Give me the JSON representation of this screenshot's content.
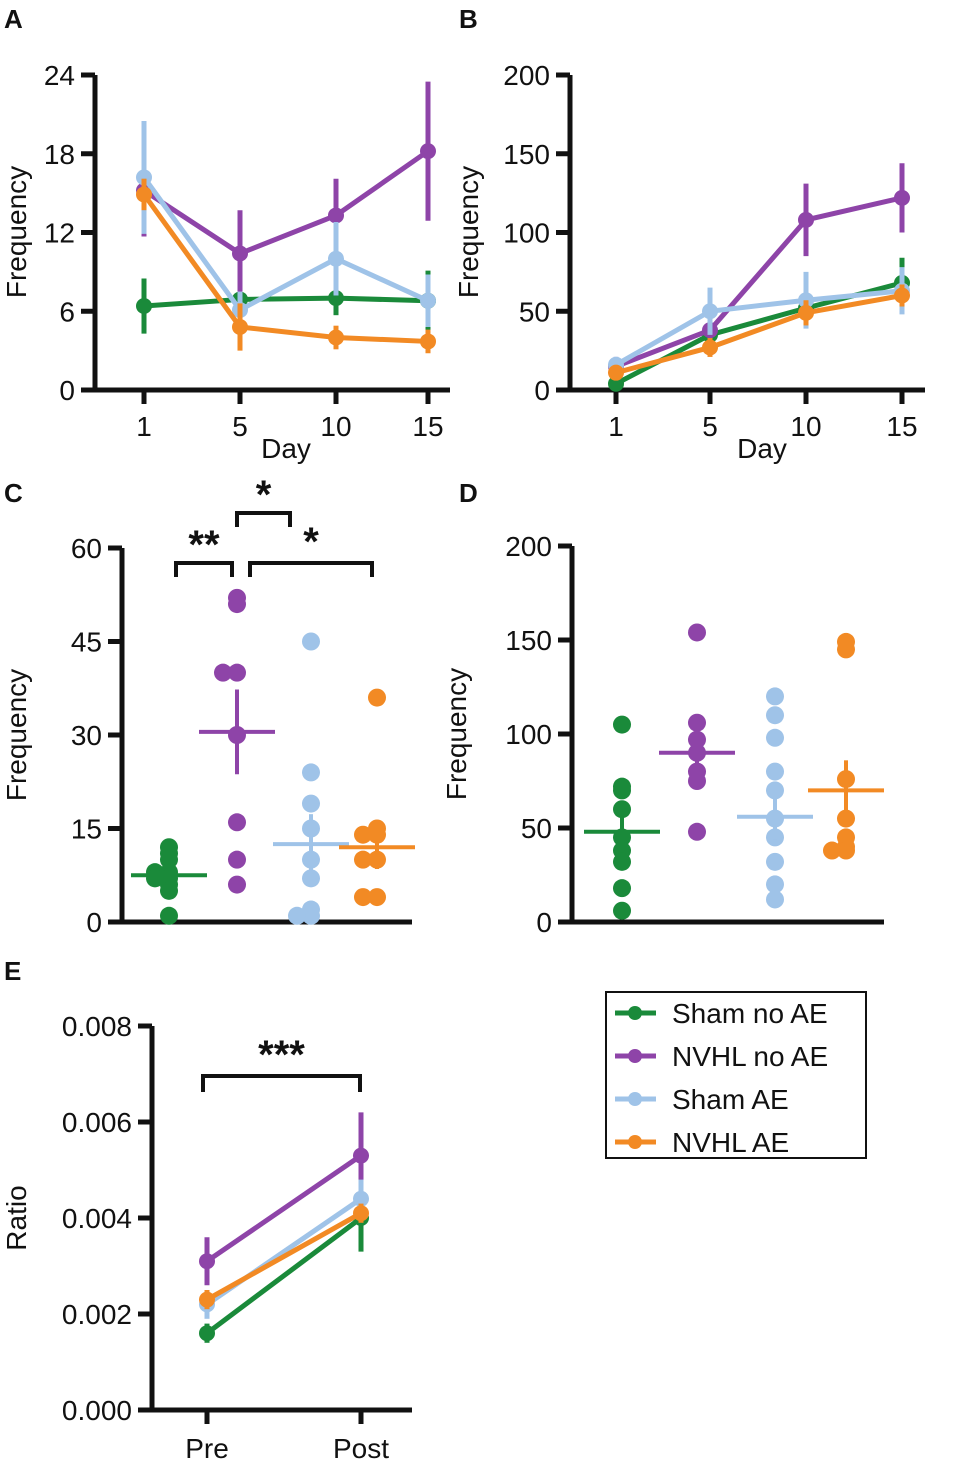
{
  "colors": {
    "Sham no AE": "#1a8a3a",
    "NVHL no AE": "#8e44a8",
    "Sham AE": "#9fc3e8",
    "NVHL AE": "#f28a24"
  },
  "legend": [
    "Sham no AE",
    "NVHL no AE",
    "Sham AE",
    "NVHL AE"
  ],
  "chart_data": [
    {
      "panel": "A",
      "type": "line",
      "xlabel": "Day",
      "ylabel": "Frequency",
      "categories": [
        "1",
        "5",
        "10",
        "15"
      ],
      "ylim": [
        0,
        24
      ],
      "yticks": [
        "0",
        "6",
        "12",
        "18",
        "24"
      ],
      "series": [
        {
          "name": "Sham no AE",
          "values": [
            6.4,
            6.9,
            7.0,
            6.8
          ],
          "err": [
            2.1,
            1.6,
            1.3,
            2.3
          ]
        },
        {
          "name": "NVHL no AE",
          "values": [
            15.2,
            10.4,
            13.3,
            18.2
          ],
          "err": [
            3.5,
            3.3,
            2.8,
            5.3
          ]
        },
        {
          "name": "Sham AE",
          "values": [
            16.2,
            6.1,
            10.0,
            6.8
          ],
          "err": [
            4.3,
            1.4,
            2.8,
            2.0
          ]
        },
        {
          "name": "NVHL AE",
          "values": [
            14.9,
            4.8,
            4.0,
            3.7
          ],
          "err": [
            1.2,
            1.8,
            0.9,
            0.9
          ]
        }
      ]
    },
    {
      "panel": "B",
      "type": "line",
      "xlabel": "Day",
      "ylabel": "Frequency",
      "categories": [
        "1",
        "5",
        "10",
        "15"
      ],
      "ylim": [
        0,
        200
      ],
      "yticks": [
        "0",
        "50",
        "100",
        "150",
        "200"
      ],
      "series": [
        {
          "name": "Sham no AE",
          "values": [
            4,
            35,
            52,
            68
          ],
          "err": [
            3,
            6,
            8,
            16
          ]
        },
        {
          "name": "NVHL no AE",
          "values": [
            15,
            38,
            108,
            122
          ],
          "err": [
            6,
            8,
            23,
            22
          ]
        },
        {
          "name": "Sham AE",
          "values": [
            16,
            50,
            57,
            63
          ],
          "err": [
            5,
            15,
            18,
            15
          ]
        },
        {
          "name": "NVHL AE",
          "values": [
            11,
            27,
            49,
            60
          ],
          "err": [
            4,
            6,
            8,
            7
          ]
        }
      ]
    },
    {
      "panel": "C",
      "type": "scatter",
      "ylabel": "Frequency",
      "ylim": [
        0,
        60
      ],
      "yticks": [
        "0",
        "15",
        "30",
        "45",
        "60"
      ],
      "groups": [
        {
          "name": "Sham no AE",
          "mean": 7.5,
          "sem": 1.3,
          "points": [
            12,
            11,
            10,
            8,
            8,
            7,
            7,
            6,
            5,
            1
          ]
        },
        {
          "name": "NVHL no AE",
          "mean": 30.5,
          "sem": 6.8,
          "points": [
            52,
            51,
            40,
            40,
            30,
            16,
            10,
            6
          ]
        },
        {
          "name": "Sham AE",
          "mean": 12.5,
          "sem": 4.8,
          "points": [
            45,
            24,
            19,
            15,
            10,
            7,
            2,
            1,
            1
          ]
        },
        {
          "name": "NVHL AE",
          "mean": 12,
          "sem": 3.5,
          "points": [
            36,
            15,
            14,
            14,
            10,
            10,
            4,
            4
          ]
        }
      ],
      "significance": [
        {
          "label": "**",
          "from": "Sham no AE",
          "to": "NVHL no AE"
        },
        {
          "label": "*",
          "from": "NVHL no AE",
          "to": "Sham AE"
        },
        {
          "label": "*",
          "from": "NVHL no AE",
          "to": "NVHL AE"
        }
      ]
    },
    {
      "panel": "D",
      "type": "scatter",
      "ylabel": "Frequency",
      "ylim": [
        0,
        200
      ],
      "yticks": [
        "0",
        "50",
        "100",
        "150",
        "200"
      ],
      "groups": [
        {
          "name": "Sham no AE",
          "mean": 48,
          "sem": 11,
          "points": [
            105,
            72,
            70,
            60,
            45,
            38,
            32,
            18,
            6
          ]
        },
        {
          "name": "NVHL no AE",
          "mean": 90,
          "sem": 11,
          "points": [
            154,
            106,
            97,
            90,
            80,
            75,
            48
          ]
        },
        {
          "name": "Sham AE",
          "mean": 56,
          "sem": 12,
          "points": [
            120,
            110,
            98,
            80,
            70,
            55,
            45,
            32,
            20,
            12
          ]
        },
        {
          "name": "NVHL AE",
          "mean": 70,
          "sem": 16,
          "points": [
            149,
            145,
            76,
            55,
            45,
            40,
            38,
            38
          ]
        }
      ]
    },
    {
      "panel": "E",
      "type": "line",
      "ylabel": "Ratio",
      "categories": [
        "Pre",
        "Post"
      ],
      "ylim": [
        0,
        0.008
      ],
      "yticks": [
        "0.000",
        "0.002",
        "0.004",
        "0.006",
        "0.008"
      ],
      "series": [
        {
          "name": "Sham no AE",
          "values": [
            0.0016,
            0.004
          ],
          "err": [
            0.0002,
            0.0007
          ]
        },
        {
          "name": "NVHL no AE",
          "values": [
            0.0031,
            0.0053
          ],
          "err": [
            0.0005,
            0.0009
          ]
        },
        {
          "name": "Sham AE",
          "values": [
            0.0022,
            0.0044
          ],
          "err": [
            0.0003,
            0.0004
          ]
        },
        {
          "name": "NVHL AE",
          "values": [
            0.0023,
            0.0041
          ],
          "err": [
            0.0002,
            0.0002
          ]
        }
      ],
      "significance": [
        {
          "label": "***",
          "from": "Pre",
          "to": "Post"
        }
      ]
    }
  ]
}
